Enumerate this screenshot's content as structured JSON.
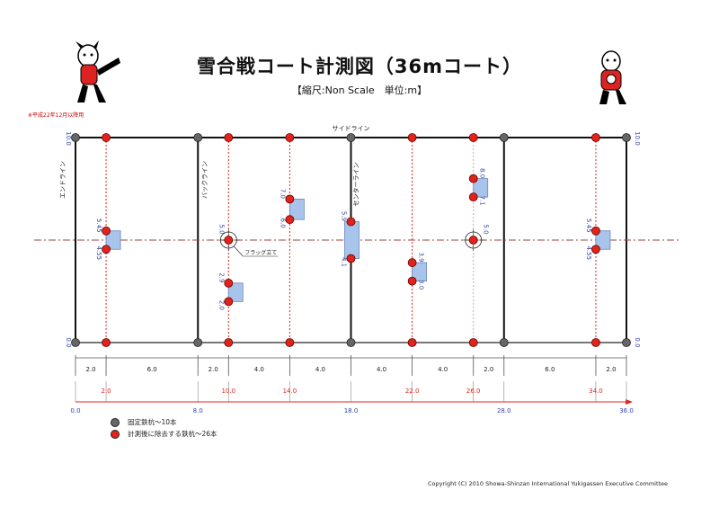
{
  "title": "雪合戦コート計測図（36mコート）",
  "subtitle": "【縮尺:Non Scale　単位:m】",
  "note": "※平成22年12月以降用",
  "copyright": "Copyright (C) 2010 Showa-Shinzan International Yukigassen Executive Committee",
  "court": {
    "length_m": 36,
    "width_m": 10,
    "labels": {
      "side_line": "サイドライン",
      "end_line": "エンドライン",
      "back_line": "バックライン",
      "center_line": "センターライン",
      "flag": "フラッグ立て"
    },
    "end_widths": {
      "left": "10.0",
      "right": "10.0"
    },
    "zero_labels": {
      "left": "0.0",
      "right": "0.0"
    },
    "fixed_stakes_x": [
      0,
      8,
      18,
      28,
      36
    ],
    "removable_stakes_x": [
      2,
      10,
      14,
      22,
      26,
      34
    ],
    "shelters": [
      {
        "x": 2,
        "y0": 4.55,
        "y1": 5.45,
        "top_label": "5.45",
        "bottom_label": "4.55"
      },
      {
        "x": 10,
        "y0": 2.0,
        "y1": 2.9,
        "top_label": "2.9",
        "bottom_label": "2.0"
      },
      {
        "x": 14,
        "y0": 6.0,
        "y1": 7.0,
        "top_label": "7.0",
        "bottom_label": "6.0"
      },
      {
        "x": 18,
        "y0": 4.1,
        "y1": 5.9,
        "top_label": "5.9",
        "bottom_label": "4.1"
      },
      {
        "x": 22,
        "y0": 3.0,
        "y1": 3.9,
        "top_label": "3.9",
        "bottom_label": "3.0"
      },
      {
        "x": 26,
        "y0": 7.1,
        "y1": 8.0,
        "top_label": "8.0",
        "bottom_label": "7.1"
      },
      {
        "x": 34,
        "y0": 4.55,
        "y1": 5.45,
        "top_label": "5.45",
        "bottom_label": "4.55"
      }
    ],
    "flags": [
      {
        "x": 10,
        "y": 5.0,
        "label": "5.0"
      },
      {
        "x": 26,
        "y": 5.0,
        "label": "5.0"
      }
    ],
    "segments": [
      "2.0",
      "6.0",
      "2.0",
      "4.0",
      "4.0",
      "4.0",
      "4.0",
      "2.0",
      "6.0",
      "2.0"
    ],
    "cumulative": [
      {
        "x": 2,
        "label": "2.0"
      },
      {
        "x": 10,
        "label": "10.0"
      },
      {
        "x": 14,
        "label": "14.0"
      },
      {
        "x": 22,
        "label": "22.0"
      },
      {
        "x": 26,
        "label": "26.0"
      },
      {
        "x": 34,
        "label": "34.0"
      }
    ],
    "axis_ticks": [
      {
        "x": 0,
        "label": "0.0"
      },
      {
        "x": 8,
        "label": "8.0"
      },
      {
        "x": 18,
        "label": "18.0"
      },
      {
        "x": 28,
        "label": "28.0"
      },
      {
        "x": 36,
        "label": "36.0"
      }
    ]
  },
  "legend": [
    {
      "label": "固定鉄杭～10本",
      "color": "#666666"
    },
    {
      "label": "計測後に除去する鉄杭～26本",
      "color": "#e0241b"
    }
  ],
  "colors": {
    "fixed": "#666666",
    "removable": "#e0241b",
    "shelter": "#a9c4ea",
    "center_dash": "#a04040"
  }
}
